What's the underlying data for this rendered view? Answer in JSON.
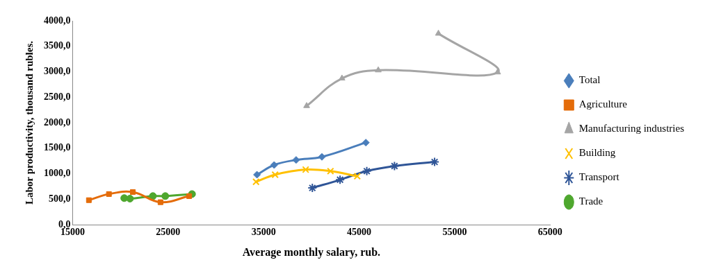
{
  "chart_data": {
    "type": "scatter",
    "x_label": "Average monthly salary, rub.",
    "y_label": "Labor productivity, thousand rubles.",
    "xlim": [
      15000,
      65000
    ],
    "xticks": [
      15000,
      25000,
      35000,
      45000,
      55000,
      65000
    ],
    "ylim": [
      0,
      4000
    ],
    "yticks": [
      {
        "value": 0,
        "label": "0,0"
      },
      {
        "value": 500,
        "label": "500,0"
      },
      {
        "value": 1000,
        "label": "1000,0"
      },
      {
        "value": 1500,
        "label": "1500,0"
      },
      {
        "value": 2000,
        "label": "2000,0"
      },
      {
        "value": 2500,
        "label": "2500,0"
      },
      {
        "value": 3000,
        "label": "3000,0"
      },
      {
        "value": 3500,
        "label": "3500,0"
      },
      {
        "value": 4000,
        "label": "4000,0"
      }
    ],
    "grid": false,
    "legend": "right",
    "series": [
      {
        "name": "Total",
        "color": "#4a7ebb",
        "marker": "diamond",
        "line_style": "smooth",
        "x": [
          34300,
          36100,
          38400,
          41100,
          45700
        ],
        "values": [
          980,
          1170,
          1270,
          1330,
          1610
        ]
      },
      {
        "name": "Agriculture",
        "color": "#e46c0a",
        "marker": "square",
        "line_style": "smooth",
        "x": [
          16700,
          18800,
          21300,
          24200,
          27200
        ],
        "values": [
          480,
          600,
          640,
          440,
          560
        ]
      },
      {
        "name": "Manufacturing industries",
        "color": "#a5a5a5",
        "marker": "triangle",
        "line_style": "smooth",
        "x": [
          39500,
          43200,
          47000,
          59500,
          53300
        ],
        "values": [
          2330,
          2870,
          3030,
          2990,
          3750
        ]
      },
      {
        "name": "Building",
        "color": "#ffc000",
        "marker": "x",
        "line_style": "smooth",
        "x": [
          34200,
          36200,
          39400,
          42000,
          44800
        ],
        "values": [
          840,
          980,
          1080,
          1050,
          950
        ]
      },
      {
        "name": "Transport",
        "color": "#2f5597",
        "marker": "star",
        "line_style": "smooth",
        "x": [
          40100,
          43000,
          45800,
          48700,
          52900
        ],
        "values": [
          720,
          880,
          1050,
          1150,
          1230
        ]
      },
      {
        "name": "Trade",
        "color": "#4ea72e",
        "marker": "circle",
        "line_style": "smooth",
        "x": [
          20400,
          21000,
          23400,
          24700,
          27500
        ],
        "values": [
          520,
          510,
          560,
          560,
          600
        ]
      }
    ]
  }
}
